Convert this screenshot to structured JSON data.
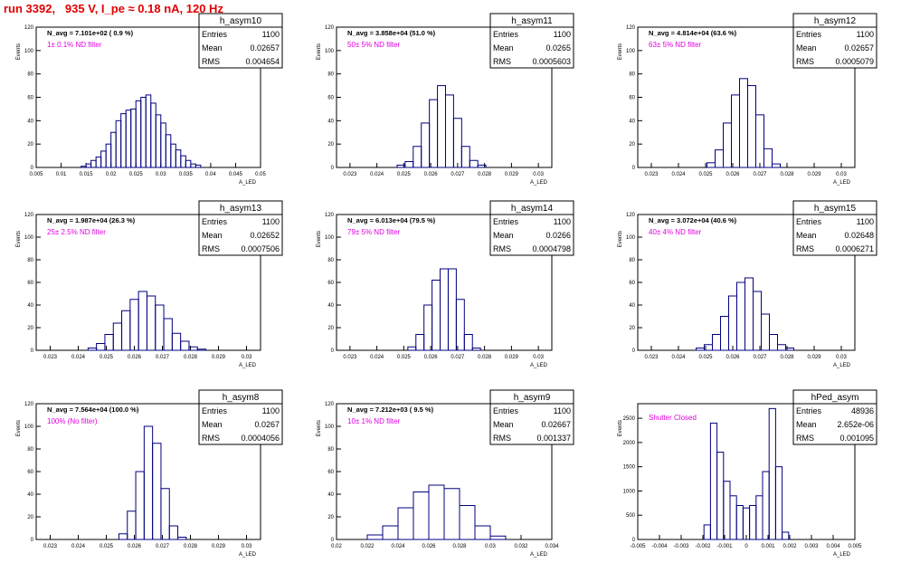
{
  "page_title": "run 3392,   935 V, I_pe ≈ 0.18 nA, 120 Hz",
  "stat_labels": {
    "entries": "Entries",
    "mean": "Mean",
    "rms": "RMS"
  },
  "colors": {
    "histogram": "#00007f",
    "annotation": "#e000e0",
    "title": "#e00000"
  },
  "chart_data": [
    {
      "type": "histogram",
      "name": "h_asym10",
      "navg": "N_avg = 7.101e+02 ( 0.9 %)",
      "filter": "1± 0.1% ND filter",
      "entries": "1100",
      "mean": "0.02657",
      "rms": "0.004654",
      "xlabel": "A_LED",
      "ylabel": "Events",
      "xlim": [
        0.005,
        0.05
      ],
      "ylim": [
        0,
        120
      ],
      "xticks": [
        "0.005",
        "0.01",
        "0.015",
        "0.02",
        "0.025",
        "0.03",
        "0.035",
        "0.04",
        "0.045",
        "0.05"
      ],
      "yticks": [
        "0",
        "20",
        "40",
        "60",
        "80",
        "100",
        "120"
      ],
      "x": [
        0.0145,
        0.0155,
        0.0165,
        0.0175,
        0.0185,
        0.0195,
        0.0205,
        0.0215,
        0.0225,
        0.0235,
        0.0245,
        0.0255,
        0.0265,
        0.0275,
        0.0285,
        0.0295,
        0.0305,
        0.0315,
        0.0325,
        0.0335,
        0.0345,
        0.0355,
        0.0365,
        0.0375
      ],
      "values": [
        1,
        3,
        6,
        9,
        14,
        20,
        30,
        40,
        46,
        49,
        50,
        57,
        60,
        62,
        55,
        45,
        38,
        28,
        20,
        15,
        10,
        6,
        3,
        2
      ]
    },
    {
      "type": "histogram",
      "name": "h_asym11",
      "navg": "N_avg = 3.858e+04 (51.0 %)",
      "filter": "50± 5% ND filter",
      "entries": "1100",
      "mean": "0.0265",
      "rms": "0.0005603",
      "xlabel": "A_LED",
      "ylabel": "Events",
      "xlim": [
        0.0225,
        0.0305
      ],
      "ylim": [
        0,
        120
      ],
      "xticks": [
        "0.023",
        "0.024",
        "0.025",
        "0.026",
        "0.027",
        "0.028",
        "0.029",
        "0.03"
      ],
      "yticks": [
        "0",
        "20",
        "40",
        "60",
        "80",
        "100",
        "120"
      ],
      "x": [
        0.0249,
        0.0252,
        0.0255,
        0.0258,
        0.0261,
        0.0264,
        0.0267,
        0.027,
        0.0273,
        0.0276,
        0.0279
      ],
      "values": [
        2,
        5,
        18,
        38,
        58,
        70,
        62,
        42,
        18,
        6,
        2
      ]
    },
    {
      "type": "histogram",
      "name": "h_asym12",
      "navg": "N_avg = 4.814e+04 (63.6 %)",
      "filter": "63± 5% ND filter",
      "entries": "1100",
      "mean": "0.02657",
      "rms": "0.0005079",
      "xlabel": "A_LED",
      "ylabel": "Events",
      "xlim": [
        0.0225,
        0.0305
      ],
      "ylim": [
        0,
        120
      ],
      "xticks": [
        "0.023",
        "0.024",
        "0.025",
        "0.026",
        "0.027",
        "0.028",
        "0.029",
        "0.03"
      ],
      "yticks": [
        "0",
        "20",
        "40",
        "60",
        "80",
        "100",
        "120"
      ],
      "x": [
        0.0252,
        0.0255,
        0.0258,
        0.0261,
        0.0264,
        0.0267,
        0.027,
        0.0273,
        0.0276
      ],
      "values": [
        4,
        15,
        38,
        62,
        76,
        70,
        45,
        16,
        3
      ]
    },
    {
      "type": "histogram",
      "name": "h_asym13",
      "navg": "N_avg = 1.987e+04 (26.3 %)",
      "filter": "25± 2.5% ND filter",
      "entries": "1100",
      "mean": "0.02652",
      "rms": "0.0007506",
      "xlabel": "A_LED",
      "ylabel": "Events",
      "xlim": [
        0.0225,
        0.0305
      ],
      "ylim": [
        0,
        120
      ],
      "xticks": [
        "0.023",
        "0.024",
        "0.025",
        "0.026",
        "0.027",
        "0.028",
        "0.029",
        "0.03"
      ],
      "yticks": [
        "0",
        "20",
        "40",
        "60",
        "80",
        "100",
        "120"
      ],
      "x": [
        0.0245,
        0.0248,
        0.0251,
        0.0254,
        0.0257,
        0.026,
        0.0263,
        0.0266,
        0.0269,
        0.0272,
        0.0275,
        0.0278,
        0.0281,
        0.0284
      ],
      "values": [
        2,
        6,
        14,
        24,
        35,
        45,
        52,
        48,
        40,
        28,
        15,
        8,
        3,
        1
      ]
    },
    {
      "type": "histogram",
      "name": "h_asym14",
      "navg": "N_avg = 6.013e+04 (79.5 %)",
      "filter": "79± 5% ND filter",
      "entries": "1100",
      "mean": "0.0266",
      "rms": "0.0004798",
      "xlabel": "A_LED",
      "ylabel": "Events",
      "xlim": [
        0.0225,
        0.0305
      ],
      "ylim": [
        0,
        120
      ],
      "xticks": [
        "0.023",
        "0.024",
        "0.025",
        "0.026",
        "0.027",
        "0.028",
        "0.029",
        "0.03"
      ],
      "yticks": [
        "0",
        "20",
        "40",
        "60",
        "80",
        "100",
        "120"
      ],
      "x": [
        0.0253,
        0.0256,
        0.0259,
        0.0262,
        0.0265,
        0.0268,
        0.0271,
        0.0274,
        0.0277
      ],
      "values": [
        3,
        14,
        40,
        62,
        72,
        72,
        45,
        14,
        2
      ]
    },
    {
      "type": "histogram",
      "name": "h_asym15",
      "navg": "N_avg = 3.072e+04 (40.6 %)",
      "filter": "40± 4% ND filter",
      "entries": "1100",
      "mean": "0.02648",
      "rms": "0.0006271",
      "xlabel": "A_LED",
      "ylabel": "Events",
      "xlim": [
        0.0225,
        0.0305
      ],
      "ylim": [
        0,
        120
      ],
      "xticks": [
        "0.023",
        "0.024",
        "0.025",
        "0.026",
        "0.027",
        "0.028",
        "0.029",
        "0.03"
      ],
      "yticks": [
        "0",
        "20",
        "40",
        "60",
        "80",
        "100",
        "120"
      ],
      "x": [
        0.0248,
        0.0251,
        0.0254,
        0.0257,
        0.026,
        0.0263,
        0.0266,
        0.0269,
        0.0272,
        0.0275,
        0.0278,
        0.0281
      ],
      "values": [
        2,
        5,
        14,
        30,
        48,
        60,
        64,
        52,
        32,
        14,
        5,
        2
      ]
    },
    {
      "type": "histogram",
      "name": "h_asym8",
      "navg": "N_avg = 7.564e+04 (100.0 %)",
      "filter": "100% (No filter)",
      "entries": "1100",
      "mean": "0.0267",
      "rms": "0.0004056",
      "xlabel": "A_LED",
      "ylabel": "Events",
      "xlim": [
        0.0225,
        0.0305
      ],
      "ylim": [
        0,
        120
      ],
      "xticks": [
        "0.023",
        "0.024",
        "0.025",
        "0.026",
        "0.027",
        "0.028",
        "0.029",
        "0.03"
      ],
      "yticks": [
        "0",
        "20",
        "40",
        "60",
        "80",
        "100",
        "120"
      ],
      "x": [
        0.0256,
        0.0259,
        0.0262,
        0.0265,
        0.0268,
        0.0271,
        0.0274,
        0.0277
      ],
      "values": [
        5,
        25,
        60,
        100,
        85,
        45,
        12,
        2
      ]
    },
    {
      "type": "histogram",
      "name": "h_asym9",
      "navg": "N_avg = 7.212e+03 ( 9.5 %)",
      "filter": "10± 1% ND filter",
      "entries": "1100",
      "mean": "0.02667",
      "rms": "0.001337",
      "xlabel": "A_LED",
      "ylabel": "Events",
      "xlim": [
        0.02,
        0.034
      ],
      "ylim": [
        0,
        120
      ],
      "xticks": [
        "0.02",
        "0.022",
        "0.024",
        "0.026",
        "0.028",
        "0.03",
        "0.032",
        "0.034"
      ],
      "yticks": [
        "0",
        "20",
        "40",
        "60",
        "80",
        "100",
        "120"
      ],
      "x": [
        0.0225,
        0.0235,
        0.0245,
        0.0255,
        0.0265,
        0.0275,
        0.0285,
        0.0295,
        0.0305
      ],
      "values": [
        4,
        12,
        28,
        42,
        48,
        45,
        30,
        12,
        3
      ]
    },
    {
      "type": "histogram",
      "name": "hPed_asym",
      "navg": "",
      "filter": "Shutter Closed",
      "entries": "48936",
      "mean": "2.652e-06",
      "rms": "0.001095",
      "xlabel": "A_LED",
      "ylabel": "Events",
      "xlim": [
        -0.005,
        0.005
      ],
      "ylim": [
        0,
        2800
      ],
      "xticks": [
        "-0.005",
        "-0.004",
        "-0.003",
        "-0.002",
        "-0.001",
        "0",
        "0.001",
        "0.002",
        "0.003",
        "0.004",
        "0.005"
      ],
      "yticks": [
        "0",
        "500",
        "1000",
        "1500",
        "2000",
        "2500"
      ],
      "x": [
        -0.0018,
        -0.0015,
        -0.0012,
        -0.0009,
        -0.0006,
        -0.0003,
        0.0,
        0.0003,
        0.0006,
        0.0009,
        0.0012,
        0.0015,
        0.0018
      ],
      "values": [
        300,
        2400,
        1800,
        1200,
        900,
        700,
        650,
        700,
        900,
        1400,
        2700,
        1500,
        150
      ]
    }
  ]
}
